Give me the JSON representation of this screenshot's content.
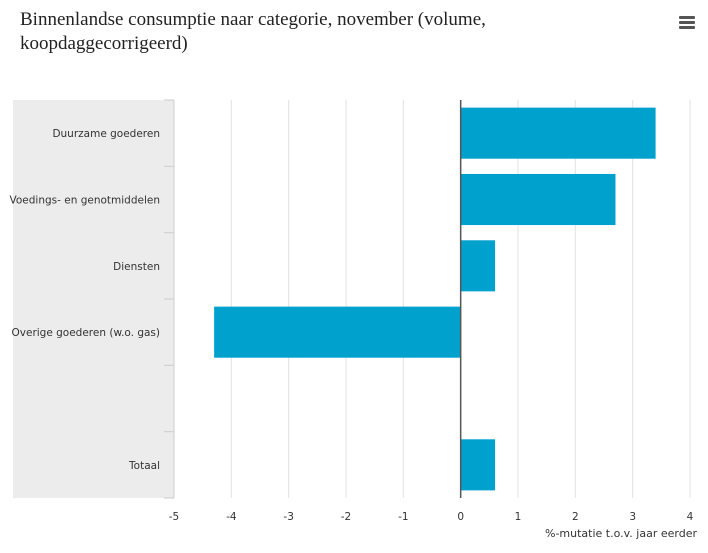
{
  "chart_data": {
    "type": "bar",
    "orientation": "horizontal",
    "title": "Binnenlandse consumptie naar categorie, november (volume, koopdaggecorrigeerd)",
    "xlabel": "%-mutatie t.o.v. jaar eerder",
    "ylabel": "",
    "xlim": [
      -5,
      4
    ],
    "x_ticks": [
      "-5",
      "-4",
      "-3",
      "-2",
      "-1",
      "0",
      "1",
      "2",
      "3",
      "4"
    ],
    "grid": "vertical",
    "categories": [
      "Duurzame goederen",
      "Voedings- en genotmiddelen",
      "Diensten",
      "Overige goederen (w.o. gas)",
      "",
      "Totaal"
    ],
    "values": [
      3.4,
      2.7,
      0.6,
      -4.3,
      null,
      0.6
    ],
    "bar_color": "#00a1cd"
  },
  "menu_icon": "hamburger-menu-icon"
}
